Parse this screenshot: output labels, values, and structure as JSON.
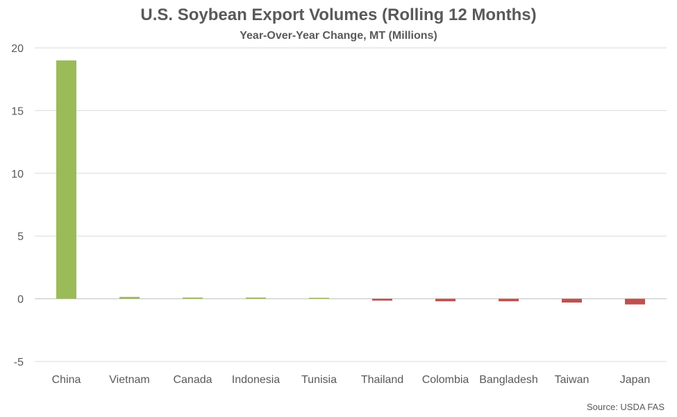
{
  "chart_data": {
    "type": "bar",
    "title": "U.S. Soybean Export Volumes (Rolling 12 Months)",
    "subtitle": "Year-Over-Year Change, MT (Millions)",
    "xlabel": "",
    "ylabel": "",
    "categories": [
      "China",
      "Vietnam",
      "Canada",
      "Indonesia",
      "Tunisia",
      "Thailand",
      "Colombia",
      "Bangladesh",
      "Taiwan",
      "Japan"
    ],
    "values": [
      19.0,
      0.15,
      0.1,
      0.1,
      0.08,
      -0.15,
      -0.2,
      -0.2,
      -0.3,
      -0.45
    ],
    "ylim": [
      -5,
      20
    ],
    "yticks": [
      "-5",
      "0",
      "5",
      "10",
      "15",
      "20"
    ],
    "grid": true,
    "legend": "none",
    "colors": {
      "positive": "#9BBB59",
      "negative": "#C0504D",
      "grid": "#D9D9D9",
      "zero_line": "#BFBFBF",
      "text": "#595959"
    },
    "source": "Source: USDA FAS"
  }
}
